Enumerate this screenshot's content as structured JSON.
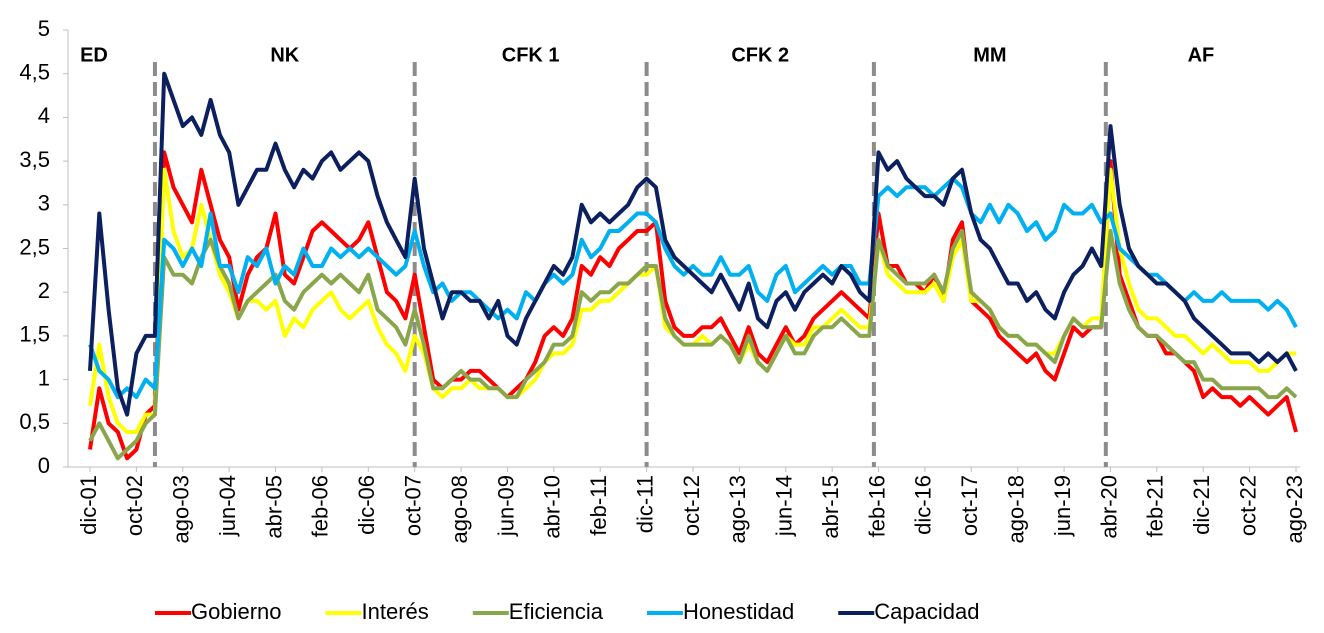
{
  "chart_data": {
    "type": "line",
    "categories": [
      "dic-01",
      null,
      null,
      null,
      null,
      "oct-02",
      null,
      null,
      null,
      null,
      "ago-03",
      null,
      null,
      null,
      null,
      "jun-04",
      null,
      null,
      null,
      null,
      "abr-05",
      null,
      null,
      null,
      null,
      "feb-06",
      null,
      null,
      null,
      null,
      "dic-06",
      null,
      null,
      null,
      null,
      "oct-07",
      null,
      null,
      null,
      null,
      "ago-08",
      null,
      null,
      null,
      null,
      "jun-09",
      null,
      null,
      null,
      null,
      "abr-10",
      null,
      null,
      null,
      null,
      "feb-11",
      null,
      null,
      null,
      null,
      "dic-11",
      null,
      null,
      null,
      null,
      "oct-12",
      null,
      null,
      null,
      null,
      "ago-13",
      null,
      null,
      null,
      null,
      "jun-14",
      null,
      null,
      null,
      null,
      "abr-15",
      null,
      null,
      null,
      null,
      "feb-16",
      null,
      null,
      null,
      null,
      "dic-16",
      null,
      null,
      null,
      null,
      "oct-17",
      null,
      null,
      null,
      null,
      "ago-18",
      null,
      null,
      null,
      null,
      "jun-19",
      null,
      null,
      null,
      null,
      "abr-20",
      null,
      null,
      null,
      null,
      "feb-21",
      null,
      null,
      null,
      null,
      "dic-21",
      null,
      null,
      null,
      null,
      "oct-22",
      null,
      null,
      null,
      null,
      "ago-23"
    ],
    "series": [
      {
        "name": "Gobierno",
        "color": "#ff0000",
        "values": [
          0.2,
          0.9,
          0.5,
          0.4,
          0.1,
          0.2,
          0.6,
          0.7,
          3.6,
          3.2,
          3.0,
          2.8,
          3.4,
          3.0,
          2.6,
          2.4,
          1.8,
          2.2,
          2.4,
          2.5,
          2.9,
          2.2,
          2.1,
          2.4,
          2.7,
          2.8,
          2.7,
          2.6,
          2.5,
          2.6,
          2.8,
          2.4,
          2.0,
          1.9,
          1.7,
          2.2,
          1.6,
          1.0,
          0.9,
          1.0,
          1.0,
          1.1,
          1.1,
          1.0,
          0.9,
          0.8,
          0.9,
          1.0,
          1.2,
          1.5,
          1.6,
          1.5,
          1.7,
          2.3,
          2.2,
          2.4,
          2.3,
          2.5,
          2.6,
          2.7,
          2.7,
          2.8,
          1.9,
          1.6,
          1.5,
          1.5,
          1.6,
          1.6,
          1.7,
          1.5,
          1.3,
          1.6,
          1.3,
          1.2,
          1.4,
          1.6,
          1.4,
          1.5,
          1.7,
          1.8,
          1.9,
          2.0,
          1.9,
          1.8,
          1.7,
          2.9,
          2.3,
          2.3,
          2.1,
          2.1,
          2.0,
          2.2,
          1.9,
          2.6,
          2.8,
          1.9,
          1.8,
          1.7,
          1.5,
          1.4,
          1.3,
          1.2,
          1.3,
          1.1,
          1.0,
          1.3,
          1.6,
          1.5,
          1.6,
          1.6,
          3.5,
          2.2,
          1.9,
          1.6,
          1.5,
          1.5,
          1.3,
          1.3,
          1.2,
          1.1,
          0.8,
          0.9,
          0.8,
          0.8,
          0.7,
          0.8,
          0.7,
          0.6,
          0.7,
          0.8,
          0.4
        ]
      },
      {
        "name": "Interés",
        "color": "#ffff00",
        "values": [
          0.7,
          1.4,
          0.8,
          0.5,
          0.4,
          0.4,
          0.6,
          0.6,
          3.4,
          2.7,
          2.4,
          2.5,
          3.0,
          2.6,
          2.2,
          2.0,
          1.7,
          1.9,
          1.9,
          1.8,
          1.9,
          1.5,
          1.7,
          1.6,
          1.8,
          1.9,
          2.0,
          1.8,
          1.7,
          1.8,
          1.9,
          1.6,
          1.4,
          1.3,
          1.1,
          1.5,
          1.3,
          0.9,
          0.8,
          0.9,
          0.9,
          1.0,
          0.9,
          0.9,
          0.9,
          0.8,
          0.8,
          0.9,
          1.0,
          1.2,
          1.3,
          1.3,
          1.4,
          1.8,
          1.8,
          1.9,
          1.9,
          2.0,
          2.1,
          2.2,
          2.2,
          2.3,
          1.6,
          1.5,
          1.4,
          1.4,
          1.5,
          1.4,
          1.5,
          1.4,
          1.2,
          1.4,
          1.2,
          1.1,
          1.3,
          1.5,
          1.4,
          1.4,
          1.6,
          1.6,
          1.7,
          1.8,
          1.7,
          1.6,
          1.6,
          2.6,
          2.2,
          2.1,
          2.0,
          2.0,
          2.0,
          2.1,
          1.9,
          2.4,
          2.6,
          1.9,
          1.9,
          1.8,
          1.6,
          1.5,
          1.5,
          1.4,
          1.4,
          1.3,
          1.3,
          1.5,
          1.7,
          1.6,
          1.7,
          1.7,
          3.4,
          2.5,
          2.1,
          1.8,
          1.7,
          1.7,
          1.6,
          1.5,
          1.5,
          1.4,
          1.3,
          1.4,
          1.3,
          1.2,
          1.2,
          1.2,
          1.1,
          1.1,
          1.2,
          1.3,
          1.3
        ]
      },
      {
        "name": "Eficiencia",
        "color": "#8aa64c",
        "values": [
          0.3,
          0.5,
          0.3,
          0.1,
          0.2,
          0.3,
          0.5,
          0.6,
          2.4,
          2.2,
          2.2,
          2.1,
          2.4,
          2.6,
          2.3,
          2.1,
          1.7,
          1.9,
          2.0,
          2.1,
          2.2,
          1.9,
          1.8,
          2.0,
          2.1,
          2.2,
          2.1,
          2.2,
          2.1,
          2.0,
          2.2,
          1.8,
          1.7,
          1.6,
          1.4,
          1.8,
          1.4,
          0.9,
          0.9,
          1.0,
          1.1,
          1.0,
          1.0,
          0.9,
          0.9,
          0.8,
          0.8,
          1.0,
          1.1,
          1.2,
          1.4,
          1.4,
          1.5,
          2.0,
          1.9,
          2.0,
          2.0,
          2.1,
          2.1,
          2.2,
          2.3,
          2.3,
          1.7,
          1.5,
          1.4,
          1.4,
          1.4,
          1.4,
          1.5,
          1.4,
          1.2,
          1.5,
          1.2,
          1.1,
          1.3,
          1.5,
          1.3,
          1.3,
          1.5,
          1.6,
          1.6,
          1.7,
          1.6,
          1.5,
          1.5,
          2.6,
          2.3,
          2.2,
          2.1,
          2.1,
          2.1,
          2.2,
          2.0,
          2.5,
          2.7,
          2.0,
          1.9,
          1.8,
          1.6,
          1.5,
          1.5,
          1.4,
          1.4,
          1.3,
          1.2,
          1.5,
          1.7,
          1.6,
          1.6,
          1.6,
          2.7,
          2.1,
          1.8,
          1.6,
          1.5,
          1.5,
          1.4,
          1.3,
          1.2,
          1.2,
          1.0,
          1.0,
          0.9,
          0.9,
          0.9,
          0.9,
          0.9,
          0.8,
          0.8,
          0.9,
          0.8
        ]
      },
      {
        "name": "Honestidad",
        "color": "#00b0f0",
        "values": [
          1.4,
          1.1,
          1.0,
          0.8,
          0.9,
          0.8,
          1.0,
          0.9,
          2.6,
          2.5,
          2.3,
          2.5,
          2.3,
          2.9,
          2.3,
          2.3,
          2.0,
          2.4,
          2.3,
          2.5,
          2.1,
          2.3,
          2.2,
          2.5,
          2.3,
          2.3,
          2.5,
          2.4,
          2.5,
          2.4,
          2.5,
          2.4,
          2.3,
          2.2,
          2.3,
          2.7,
          2.3,
          2.0,
          2.1,
          1.9,
          2.0,
          2.0,
          1.9,
          1.8,
          1.7,
          1.8,
          1.7,
          2.0,
          1.9,
          2.1,
          2.2,
          2.1,
          2.2,
          2.6,
          2.4,
          2.5,
          2.7,
          2.7,
          2.8,
          2.9,
          2.9,
          2.8,
          2.5,
          2.3,
          2.2,
          2.3,
          2.2,
          2.2,
          2.4,
          2.2,
          2.2,
          2.3,
          2.0,
          1.9,
          2.2,
          2.3,
          2.0,
          2.1,
          2.2,
          2.3,
          2.2,
          2.3,
          2.3,
          2.1,
          2.1,
          3.1,
          3.2,
          3.1,
          3.2,
          3.2,
          3.2,
          3.1,
          3.2,
          3.3,
          3.2,
          2.9,
          2.8,
          3.0,
          2.8,
          3.0,
          2.9,
          2.7,
          2.8,
          2.6,
          2.7,
          3.0,
          2.9,
          2.9,
          3.0,
          2.8,
          2.9,
          2.5,
          2.4,
          2.3,
          2.2,
          2.2,
          2.1,
          2.0,
          1.9,
          2.0,
          1.9,
          1.9,
          2.0,
          1.9,
          1.9,
          1.9,
          1.9,
          1.8,
          1.9,
          1.8,
          1.6
        ]
      },
      {
        "name": "Capacidad",
        "color": "#0c1f5e",
        "values": [
          1.1,
          2.9,
          1.8,
          0.9,
          0.6,
          1.3,
          1.5,
          1.5,
          4.5,
          4.2,
          3.9,
          4.0,
          3.8,
          4.2,
          3.8,
          3.6,
          3.0,
          3.2,
          3.4,
          3.4,
          3.7,
          3.4,
          3.2,
          3.4,
          3.3,
          3.5,
          3.6,
          3.4,
          3.5,
          3.6,
          3.5,
          3.1,
          2.8,
          2.6,
          2.4,
          3.3,
          2.5,
          2.1,
          1.7,
          2.0,
          2.0,
          1.9,
          1.9,
          1.7,
          1.9,
          1.5,
          1.4,
          1.7,
          1.9,
          2.1,
          2.3,
          2.2,
          2.4,
          3.0,
          2.8,
          2.9,
          2.8,
          2.9,
          3.0,
          3.2,
          3.3,
          3.2,
          2.6,
          2.4,
          2.3,
          2.2,
          2.1,
          2.0,
          2.2,
          2.0,
          1.8,
          2.1,
          1.7,
          1.6,
          1.9,
          2.0,
          1.8,
          2.0,
          2.1,
          2.2,
          2.1,
          2.3,
          2.2,
          2.0,
          1.9,
          3.6,
          3.4,
          3.5,
          3.3,
          3.2,
          3.1,
          3.1,
          3.0,
          3.3,
          3.4,
          2.9,
          2.6,
          2.5,
          2.3,
          2.1,
          2.1,
          1.9,
          2.0,
          1.8,
          1.7,
          2.0,
          2.2,
          2.3,
          2.5,
          2.3,
          3.9,
          3.0,
          2.5,
          2.3,
          2.2,
          2.1,
          2.1,
          2.0,
          1.9,
          1.7,
          1.6,
          1.5,
          1.4,
          1.3,
          1.3,
          1.3,
          1.2,
          1.3,
          1.2,
          1.3,
          1.1
        ]
      }
    ],
    "ylim": [
      0,
      5
    ],
    "yticks": [
      0,
      {
        "value": 0.5,
        "label": "0,5"
      },
      1,
      {
        "value": 1.5,
        "label": "1,5"
      },
      2,
      {
        "value": 2.5,
        "label": "2,5"
      },
      3,
      {
        "value": 3.5,
        "label": "3,5"
      },
      4,
      {
        "value": 4.5,
        "label": "4,5"
      },
      5
    ],
    "periods": [
      "ED",
      "NK",
      "CFK 1",
      "CFK 2",
      "MM",
      "AF"
    ],
    "period_breaks": [
      7,
      35,
      60,
      84.5,
      109.5
    ],
    "grid": false,
    "legend": "bottom"
  }
}
